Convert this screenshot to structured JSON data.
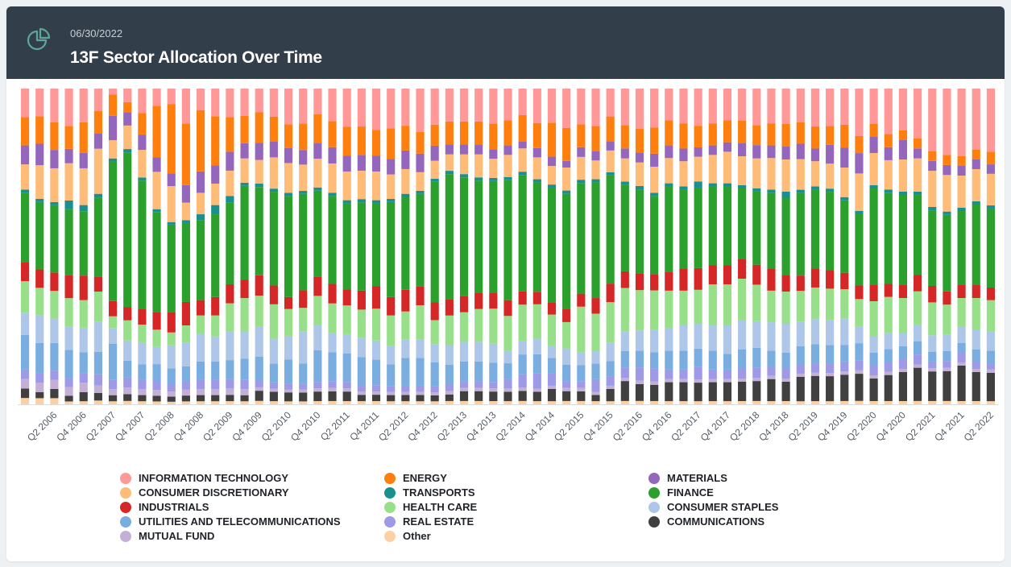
{
  "header": {
    "date": "06/30/2022",
    "title": "13F Sector Allocation Over Time",
    "icon": "pie-chart-icon"
  },
  "colors": {
    "header_bg": "#323f4b",
    "card_bg": "#ffffff",
    "page_bg": "#eef1f4"
  },
  "chart_data": {
    "type": "bar",
    "stacked": true,
    "normalized": true,
    "ylim": [
      0,
      100
    ],
    "grid": false,
    "legend_position": "bottom",
    "x_tick_labels": [
      "Q2 2006",
      "Q4 2006",
      "Q2 2007",
      "Q4 2007",
      "Q2 2008",
      "Q4 2008",
      "Q2 2009",
      "Q4 2009",
      "Q2 2010",
      "Q4 2010",
      "Q2 2011",
      "Q4 2011",
      "Q2 2012",
      "Q4 2012",
      "Q2 2013",
      "Q4 2013",
      "Q2 2014",
      "Q4 2014",
      "Q2 2015",
      "Q4 2015",
      "Q2 2016",
      "Q4 2016",
      "Q2 2017",
      "Q4 2017",
      "Q2 2018",
      "Q4 2018",
      "Q2 2019",
      "Q4 2019",
      "Q2 2020",
      "Q4 2020",
      "Q2 2021",
      "Q4 2021",
      "Q2 2022"
    ],
    "categories": [
      "Q4 2005",
      "Q1 2006",
      "Q2 2006",
      "Q3 2006",
      "Q4 2006",
      "Q1 2007",
      "Q2 2007",
      "Q3 2007",
      "Q4 2007",
      "Q1 2008",
      "Q2 2008",
      "Q3 2008",
      "Q4 2008",
      "Q1 2009",
      "Q2 2009",
      "Q3 2009",
      "Q4 2009",
      "Q1 2010",
      "Q2 2010",
      "Q3 2010",
      "Q4 2010",
      "Q1 2011",
      "Q2 2011",
      "Q3 2011",
      "Q4 2011",
      "Q1 2012",
      "Q2 2012",
      "Q3 2012",
      "Q4 2012",
      "Q1 2013",
      "Q2 2013",
      "Q3 2013",
      "Q4 2013",
      "Q1 2014",
      "Q2 2014",
      "Q3 2014",
      "Q4 2014",
      "Q1 2015",
      "Q2 2015",
      "Q3 2015",
      "Q4 2015",
      "Q1 2016",
      "Q2 2016",
      "Q3 2016",
      "Q4 2016",
      "Q1 2017",
      "Q2 2017",
      "Q3 2017",
      "Q4 2017",
      "Q1 2018",
      "Q2 2018",
      "Q3 2018",
      "Q4 2018",
      "Q1 2019",
      "Q2 2019",
      "Q3 2019",
      "Q4 2019",
      "Q1 2020",
      "Q2 2020",
      "Q3 2020",
      "Q4 2020",
      "Q1 2021",
      "Q2 2021",
      "Q3 2021",
      "Q4 2021",
      "Q1 2022",
      "Q2 2022"
    ],
    "series": [
      {
        "name": "Other",
        "color": "#fdd0a2",
        "values": [
          2,
          2,
          2,
          1,
          1,
          1,
          1,
          1,
          1,
          1,
          1,
          1,
          1,
          1,
          1,
          1,
          1,
          1,
          1,
          1,
          1,
          1,
          1,
          1,
          1,
          1,
          1,
          1,
          1,
          1,
          1,
          1,
          1,
          1,
          1,
          1,
          1,
          1,
          1,
          1,
          1,
          1,
          1,
          1,
          1,
          1,
          1,
          1,
          1,
          1,
          1,
          1,
          1,
          1,
          1,
          1,
          1,
          1,
          1,
          1,
          1,
          1,
          1,
          1,
          1,
          1,
          1
        ]
      },
      {
        "name": "COMMUNICATIONS",
        "color": "#404040",
        "values": [
          3,
          2,
          3,
          2,
          3,
          2,
          2,
          2,
          2,
          2,
          2,
          2,
          2,
          2,
          2,
          2,
          3,
          3,
          3,
          3,
          3,
          3,
          3,
          2,
          2,
          2,
          2,
          2,
          2,
          2,
          3,
          3,
          3,
          3,
          3,
          3,
          4,
          3,
          3,
          2,
          4,
          6,
          5,
          5,
          6,
          6,
          6,
          6,
          6,
          6,
          6,
          7,
          6,
          8,
          8,
          8,
          8,
          8,
          7,
          8,
          9,
          10,
          9,
          9,
          11,
          9,
          9
        ]
      },
      {
        "name": "MUTUAL FUND",
        "color": "#c5b0d5",
        "values": [
          3,
          3,
          3,
          3,
          3,
          2,
          2,
          2,
          2,
          2,
          2,
          2,
          2,
          2,
          2,
          2,
          1,
          1,
          1,
          1,
          1,
          1,
          1,
          1,
          1,
          1,
          1,
          1,
          1,
          1,
          1,
          1,
          1,
          1,
          1,
          1,
          1,
          1,
          1,
          1,
          1,
          1,
          1,
          1,
          1,
          1,
          1,
          1,
          1,
          1,
          1,
          1,
          1,
          1,
          1,
          1,
          1,
          1,
          1,
          1,
          1,
          1,
          1,
          1,
          1,
          1,
          1
        ]
      },
      {
        "name": "REAL ESTATE",
        "color": "#9e9ae8",
        "values": [
          3,
          3,
          3,
          3,
          3,
          3,
          3,
          3,
          3,
          3,
          3,
          3,
          3,
          3,
          3,
          3,
          2,
          2,
          2,
          2,
          2,
          2,
          2,
          2,
          2,
          2,
          2,
          2,
          2,
          2,
          2,
          2,
          2,
          3,
          4,
          5,
          4,
          2,
          2,
          4,
          3,
          3,
          4,
          4,
          3,
          3,
          4,
          3,
          3,
          3,
          3,
          3,
          3,
          3,
          3,
          3,
          3,
          3,
          3,
          3,
          3,
          3,
          2,
          2,
          3,
          2,
          2
        ]
      },
      {
        "name": "UTILITIES AND TELECOMMUNICATIONS",
        "color": "#7aaee0",
        "values": [
          11,
          10,
          9,
          10,
          7,
          6,
          12,
          5,
          5,
          6,
          6,
          5,
          6,
          6,
          6,
          7,
          7,
          6,
          8,
          7,
          10,
          9,
          9,
          9,
          8,
          7,
          9,
          9,
          8,
          6,
          6,
          6,
          6,
          5,
          6,
          6,
          5,
          5,
          5,
          5,
          5,
          5,
          5,
          5,
          6,
          6,
          6,
          6,
          5,
          6,
          6,
          5,
          5,
          6,
          6,
          6,
          5,
          5,
          4,
          4,
          4,
          4,
          3,
          3,
          3,
          4,
          4
        ]
      },
      {
        "name": "CONSUMER STAPLES",
        "color": "#aec7e8",
        "values": [
          7,
          9,
          8,
          8,
          8,
          8,
          5,
          6,
          7,
          6,
          9,
          8,
          9,
          8,
          9,
          9,
          9,
          8,
          8,
          11,
          8,
          6,
          6,
          6,
          6,
          6,
          6,
          6,
          6,
          6,
          6,
          6,
          6,
          4,
          4,
          5,
          4,
          5,
          4,
          4,
          6,
          6,
          6,
          7,
          7,
          8,
          8,
          8,
          9,
          9,
          8,
          9,
          9,
          8,
          8,
          8,
          8,
          5,
          5,
          5,
          4,
          5,
          5,
          5,
          5,
          6,
          6
        ]
      },
      {
        "name": "HEALTH CARE",
        "color": "#98df8a",
        "values": [
          10,
          9,
          9,
          10,
          9,
          8,
          4,
          6,
          6,
          6,
          5,
          6,
          6,
          7,
          9,
          11,
          9,
          11,
          9,
          8,
          9,
          9,
          9,
          9,
          10,
          10,
          9,
          11,
          8,
          9,
          9,
          10,
          11,
          11,
          11,
          11,
          10,
          8,
          14,
          12,
          13,
          13,
          12,
          12,
          12,
          11,
          11,
          13,
          13,
          13,
          11,
          10,
          10,
          10,
          10,
          10,
          9,
          8,
          11,
          11,
          11,
          10,
          10,
          9,
          9,
          10,
          10
        ]
      },
      {
        "name": "INDUSTRIALS",
        "color": "#d62728",
        "values": [
          6,
          6,
          6,
          8,
          8,
          4,
          5,
          4,
          5,
          6,
          8,
          8,
          5,
          6,
          6,
          6,
          6,
          6,
          4,
          6,
          6,
          6,
          5,
          6,
          7,
          6,
          7,
          6,
          6,
          5,
          5,
          5,
          5,
          5,
          4,
          4,
          4,
          4,
          4,
          5,
          6,
          5,
          5,
          5,
          6,
          7,
          7,
          6,
          6,
          6,
          6,
          7,
          5,
          5,
          6,
          6,
          5,
          4,
          5,
          4,
          4,
          5,
          5,
          4,
          4,
          4,
          4
        ]
      },
      {
        "name": "FINANCE",
        "color": "#2ca02c",
        "values": [
          22,
          22,
          22,
          23,
          21,
          21,
          46,
          46,
          42,
          35,
          34,
          27,
          26,
          27,
          26,
          31,
          26,
          30,
          34,
          33,
          27,
          27,
          27,
          28,
          26,
          31,
          30,
          30,
          40,
          38,
          36,
          34,
          35,
          38,
          35,
          35,
          37,
          35,
          34,
          37,
          35,
          26,
          25,
          24,
          27,
          25,
          26,
          25,
          25,
          22,
          22,
          24,
          24,
          27,
          25,
          25,
          22,
          21,
          30,
          28,
          28,
          24,
          23,
          23,
          23,
          25,
          25
        ]
      },
      {
        "name": "TRANSPORTS",
        "color": "#17908f",
        "values": [
          1,
          1,
          1,
          3,
          2,
          1,
          1,
          1,
          1,
          1,
          1,
          1,
          2,
          3,
          2,
          1,
          1,
          1,
          1,
          1,
          1,
          1,
          1,
          1,
          1,
          1,
          1,
          1,
          1,
          1,
          1,
          1,
          1,
          1,
          1,
          1,
          1,
          1,
          1,
          1,
          1,
          1,
          1,
          1,
          1,
          1,
          2,
          1,
          1,
          1,
          1,
          1,
          2,
          1,
          1,
          1,
          1,
          1,
          1,
          1,
          1,
          1,
          1,
          1,
          1,
          1,
          1
        ]
      },
      {
        "name": "CONSUMER DISCRETIONARY",
        "color": "#ffbb78",
        "values": [
          8,
          11,
          11,
          13,
          12,
          12,
          6,
          7,
          9,
          13,
          14,
          6,
          7,
          7,
          8,
          8,
          7,
          10,
          10,
          9,
          9,
          9,
          9,
          9,
          9,
          8,
          8,
          6,
          6,
          5,
          6,
          7,
          6,
          7,
          7,
          7,
          6,
          7,
          7,
          6,
          7,
          7,
          7,
          8,
          8,
          8,
          8,
          9,
          10,
          9,
          9,
          10,
          10,
          10,
          8,
          8,
          9,
          11,
          10,
          9,
          10,
          10,
          11,
          11,
          10,
          10,
          10
        ]
      },
      {
        "name": "MATERIALS",
        "color": "#9467bd",
        "values": [
          6,
          7,
          6,
          5,
          5,
          4,
          8,
          4,
          5,
          5,
          5,
          6,
          7,
          6,
          6,
          5,
          5,
          5,
          5,
          5,
          5,
          5,
          5,
          5,
          5,
          5,
          6,
          6,
          5,
          3,
          3,
          3,
          3,
          3,
          2,
          3,
          3,
          2,
          3,
          3,
          3,
          3,
          3,
          4,
          4,
          4,
          3,
          3,
          3,
          4,
          4,
          4,
          4,
          5,
          4,
          6,
          6,
          6,
          5,
          4,
          6,
          3,
          3,
          3,
          3,
          3,
          3
        ]
      },
      {
        "name": "ENERGY",
        "color": "#ff7f0e",
        "values": [
          9,
          9,
          9,
          8,
          10,
          6,
          7,
          3,
          7,
          18,
          27,
          21,
          20,
          16,
          11,
          9,
          9,
          8,
          8,
          9,
          9,
          8,
          9,
          9,
          8,
          10,
          8,
          7,
          7,
          7,
          7,
          7,
          8,
          8,
          8,
          8,
          11,
          10,
          7,
          8,
          8,
          7,
          7,
          8,
          8,
          8,
          7,
          7,
          7,
          7,
          6,
          7,
          7,
          7,
          7,
          6,
          7,
          5,
          4,
          4,
          3,
          3,
          3,
          3,
          3,
          3,
          4
        ]
      },
      {
        "name": "INFORMATION TECHNOLOGY",
        "color": "#ff9896",
        "values": [
          9,
          9,
          11,
          13,
          11,
          6,
          2,
          4,
          8,
          6,
          6,
          12,
          7,
          9,
          9,
          9,
          7,
          9,
          12,
          12,
          8,
          10,
          12,
          12,
          13,
          13,
          12,
          14,
          12,
          10,
          10,
          10,
          11,
          10,
          8,
          11,
          11,
          12,
          11,
          12,
          9,
          11,
          12,
          12,
          10,
          11,
          12,
          11,
          10,
          10,
          11,
          11,
          11,
          11,
          12,
          12,
          11,
          14,
          11,
          14,
          13,
          15,
          19,
          20,
          21,
          19,
          20
        ]
      }
    ]
  },
  "legend": [
    {
      "label": "INFORMATION TECHNOLOGY",
      "color": "#ff9896"
    },
    {
      "label": "ENERGY",
      "color": "#ff7f0e"
    },
    {
      "label": "MATERIALS",
      "color": "#9467bd"
    },
    {
      "label": "CONSUMER DISCRETIONARY",
      "color": "#ffbb78"
    },
    {
      "label": "TRANSPORTS",
      "color": "#17908f"
    },
    {
      "label": "FINANCE",
      "color": "#2ca02c"
    },
    {
      "label": "INDUSTRIALS",
      "color": "#d62728"
    },
    {
      "label": "HEALTH CARE",
      "color": "#98df8a"
    },
    {
      "label": "CONSUMER STAPLES",
      "color": "#aec7e8"
    },
    {
      "label": "UTILITIES AND TELECOMMUNICATIONS",
      "color": "#7aaee0"
    },
    {
      "label": "REAL ESTATE",
      "color": "#9e9ae8"
    },
    {
      "label": "COMMUNICATIONS",
      "color": "#404040"
    },
    {
      "label": "MUTUAL FUND",
      "color": "#c5b0d5"
    },
    {
      "label": "Other",
      "color": "#fdd0a2"
    }
  ]
}
